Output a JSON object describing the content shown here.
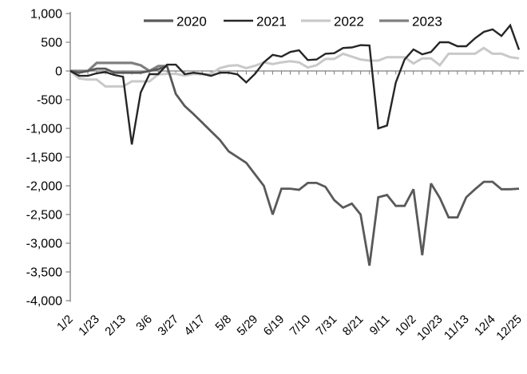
{
  "chart_data": {
    "type": "line",
    "title": "",
    "xlabel": "",
    "ylabel": "",
    "grid": false,
    "legend_position": "top",
    "ylim": [
      -4000,
      1000
    ],
    "y_axis": {
      "ticks": [
        {
          "value": 1000,
          "label": "1,000"
        },
        {
          "value": 500,
          "label": "500"
        },
        {
          "value": 0,
          "label": "0"
        },
        {
          "value": -500,
          "label": "-500"
        },
        {
          "value": -1000,
          "label": "-1,000"
        },
        {
          "value": -1500,
          "label": "-1,500"
        },
        {
          "value": -2000,
          "label": "-2,000"
        },
        {
          "value": -2500,
          "label": "-2,500"
        },
        {
          "value": -3000,
          "label": "-3,000"
        },
        {
          "value": -3500,
          "label": "-3,500"
        },
        {
          "value": -4000,
          "label": "-4,000"
        }
      ]
    },
    "x_axis": {
      "unit": "week",
      "tick_label_every": 3,
      "tick_labels": [
        "1/2",
        "1/23",
        "2/13",
        "3/6",
        "3/27",
        "4/17",
        "5/8",
        "5/29",
        "6/19",
        "7/10",
        "7/31",
        "8/21",
        "9/11",
        "10/2",
        "10/23",
        "11/13",
        "12/4",
        "12/25"
      ],
      "n_points": 52
    },
    "legend": [
      "2020",
      "2021",
      "2022",
      "2023"
    ],
    "series": [
      {
        "name": "2020",
        "color": "#595959",
        "width": 2.8,
        "values": [
          0,
          -30,
          0,
          40,
          40,
          -30,
          -30,
          -30,
          -30,
          0,
          30,
          85,
          -400,
          -610,
          -750,
          -900,
          -1050,
          -1200,
          -1400,
          -1500,
          -1600,
          -1800,
          -2000,
          -2500,
          -2050,
          -2050,
          -2070,
          -1950,
          -1950,
          -2020,
          -2250,
          -2380,
          -2310,
          -2500,
          -3390,
          -2200,
          -2160,
          -2350,
          -2350,
          -2060,
          -3210,
          -1960,
          -2210,
          -2550,
          -2550,
          -2200,
          -2060,
          -1930,
          -1930,
          -2060,
          -2060,
          -2050
        ]
      },
      {
        "name": "2021",
        "color": "#262626",
        "width": 2.4,
        "values": [
          0,
          -85,
          -85,
          -40,
          -20,
          -70,
          -100,
          -1280,
          -375,
          -55,
          -55,
          110,
          110,
          -55,
          -30,
          -50,
          -85,
          -30,
          -30,
          -60,
          -200,
          -50,
          150,
          280,
          250,
          330,
          360,
          190,
          200,
          300,
          310,
          400,
          410,
          450,
          445,
          -1000,
          -950,
          -200,
          200,
          375,
          290,
          330,
          500,
          500,
          430,
          430,
          570,
          680,
          725,
          610,
          795,
          370
        ]
      },
      {
        "name": "2022",
        "color": "#c9c9c9",
        "width": 3,
        "values": [
          0,
          -130,
          -150,
          -150,
          -270,
          -270,
          -270,
          -180,
          -180,
          -180,
          -60,
          -50,
          -50,
          -80,
          -50,
          -60,
          -50,
          50,
          90,
          100,
          50,
          90,
          150,
          120,
          150,
          170,
          150,
          60,
          100,
          210,
          210,
          300,
          250,
          200,
          180,
          180,
          240,
          240,
          240,
          130,
          220,
          220,
          100,
          300,
          300,
          300,
          300,
          400,
          300,
          300,
          240,
          220
        ]
      },
      {
        "name": "2023",
        "color": "#7f7f7f",
        "width": 3.2,
        "values": [
          0,
          0,
          0,
          140,
          140,
          140,
          140,
          140,
          100,
          0,
          85,
          85
        ]
      }
    ],
    "axis_color": "#7f7f7f"
  }
}
